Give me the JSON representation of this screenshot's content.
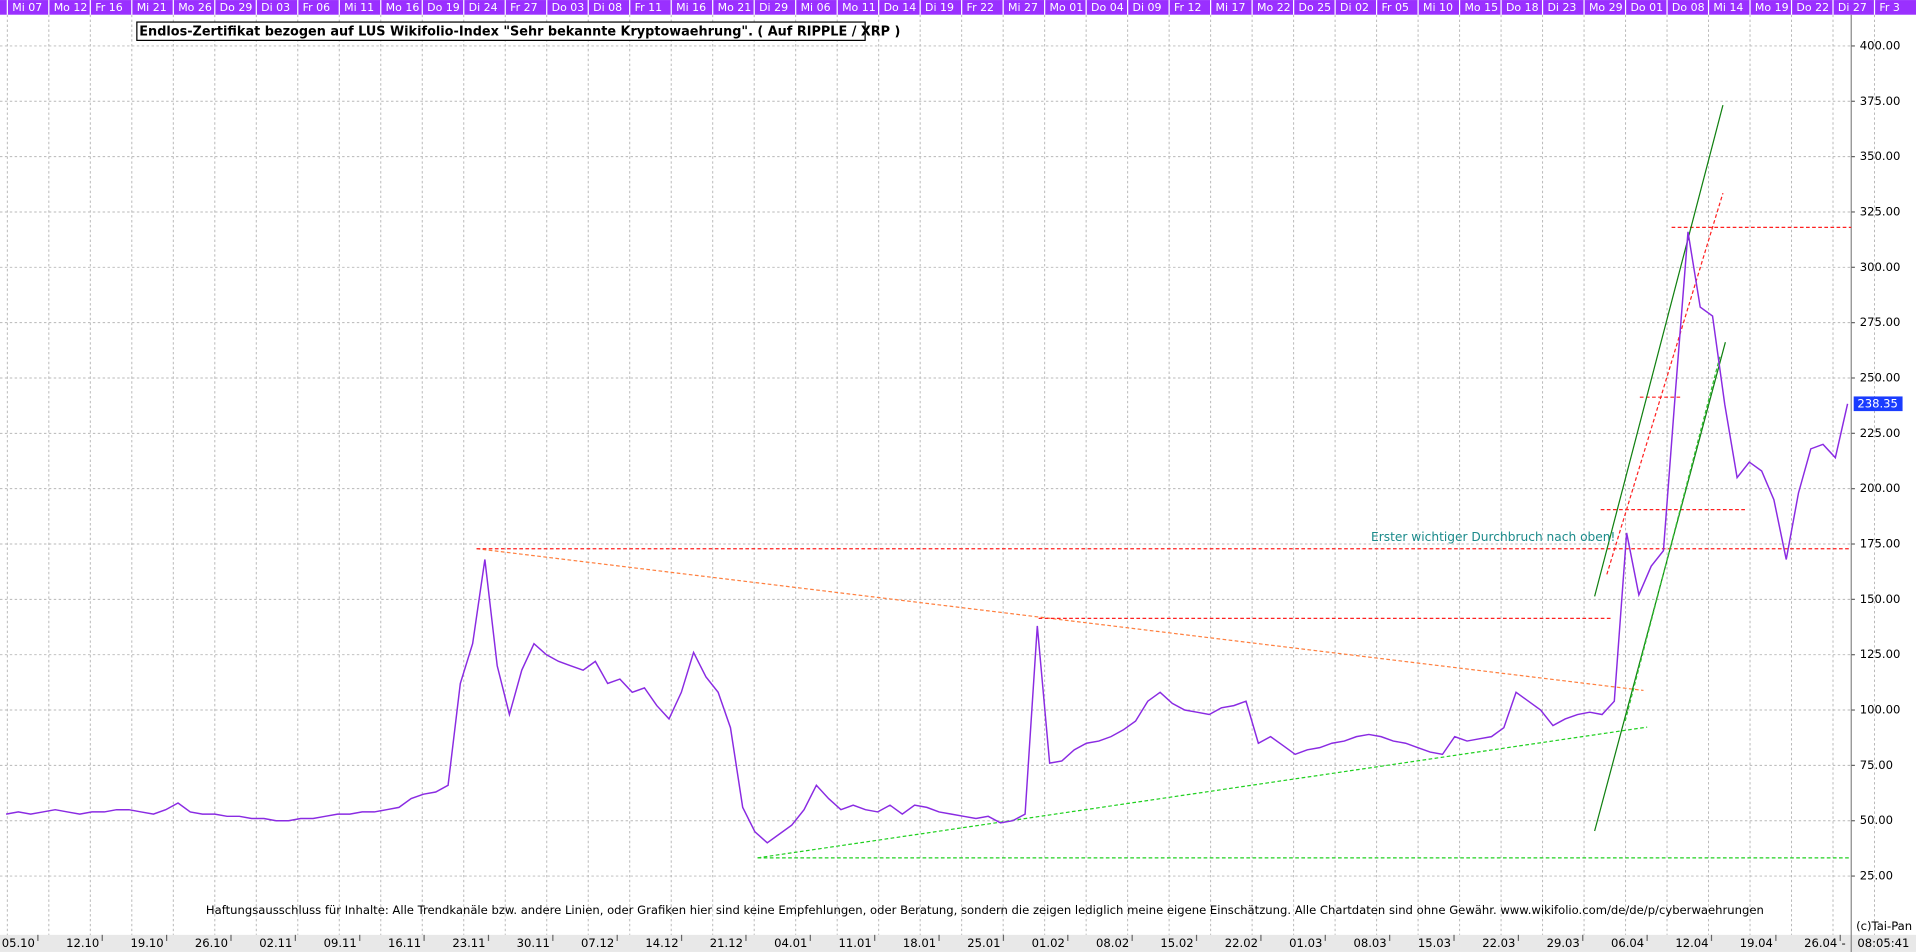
{
  "chart_data": {
    "type": "line",
    "title": "Endlos-Zertifikat bezogen auf LUS Wikifolio-Index \"Sehr bekannte Kryptowaehrung\". ( Auf RIPPLE / XRP )",
    "annotation": "Erster wichtiger Durchbruch nach oben!",
    "footer": "Haftungsausschluss für Inhalte: Alle Trendkanäle bzw. andere Linien, oder Grafiken hier sind keine Empfehlungen, oder Beratung, sondern die zeigen lediglich meine eigene Einschätzung. Alle Chartdaten sind ohne Gewähr.  www.wikifolio.com/de/de/p/cyberwaehrungen",
    "copyright": "(c)Tai-Pan",
    "time": "08:05:41",
    "cursor_label": "-",
    "color": "#8a2be2",
    "grid": true,
    "top_tick_labels": [
      "Mi 07",
      "Mo 12",
      "Fr 16",
      "Mi 21",
      "Mo 26",
      "Do 29",
      "Di 03",
      "Fr 06",
      "Mi 11",
      "Mo 16",
      "Do 19",
      "Di 24",
      "Fr 27",
      "Do 03",
      "Di 08",
      "Fr 11",
      "Mi 16",
      "Mo 21",
      "Di 29",
      "Mi 06",
      "Mo 11",
      "Do 14",
      "Di 19",
      "Fr 22",
      "Mi 27",
      "Mo 01",
      "Do 04",
      "Di 09",
      "Fr 12",
      "Mi 17",
      "Mo 22",
      "Do 25",
      "Di 02",
      "Fr 05",
      "Mi 10",
      "Mo 15",
      "Do 18",
      "Di 23",
      "Mo 29",
      "Do 01",
      "Do 08",
      "Mi 14",
      "Mo 19",
      "Do 22",
      "Di 27",
      "Fr 3"
    ],
    "x_tick_labels": [
      "05.10",
      "12.10",
      "19.10",
      "26.10",
      "02.11",
      "09.11",
      "16.11",
      "23.11",
      "30.11",
      "07.12",
      "14.12",
      "21.12",
      "04.01",
      "11.01",
      "18.01",
      "25.01",
      "01.02",
      "08.02",
      "15.02",
      "22.02",
      "01.03",
      "08.03",
      "15.03",
      "22.03",
      "29.03",
      "06.04",
      "12.04",
      "19.04",
      "26.04"
    ],
    "values": [
      53,
      54,
      53,
      54,
      55,
      54,
      53,
      54,
      54,
      55,
      55,
      54,
      53,
      55,
      58,
      54,
      53,
      53,
      52,
      52,
      51,
      51,
      50,
      50,
      51,
      51,
      52,
      53,
      53,
      54,
      54,
      55,
      56,
      60,
      62,
      63,
      66,
      112,
      130,
      168,
      120,
      98,
      118,
      130,
      125,
      122,
      120,
      118,
      122,
      112,
      114,
      108,
      110,
      102,
      96,
      108,
      126,
      115,
      108,
      92,
      56,
      45,
      40,
      44,
      48,
      55,
      66,
      60,
      55,
      57,
      55,
      54,
      57,
      53,
      57,
      56,
      54,
      53,
      52,
      51,
      52,
      49,
      50,
      53,
      138,
      76,
      77,
      82,
      85,
      86,
      88,
      91,
      95,
      104,
      108,
      103,
      100,
      99,
      98,
      101,
      102,
      104,
      85,
      88,
      84,
      80,
      82,
      83,
      85,
      86,
      88,
      89,
      88,
      86,
      85,
      83,
      81,
      80,
      88,
      86,
      87,
      88,
      92,
      108,
      104,
      100,
      93,
      96,
      98,
      99,
      98,
      104,
      180,
      152,
      165,
      172,
      245,
      316,
      282,
      278,
      238,
      205,
      212,
      208,
      195,
      168,
      198,
      218,
      220,
      214,
      238.35
    ],
    "ylim": [
      -1,
      413
    ],
    "yticks": [
      {
        "value": 25,
        "label": "25.00"
      },
      {
        "value": 50,
        "label": "50.00"
      },
      {
        "value": 75,
        "label": "75.00"
      },
      {
        "value": 100,
        "label": "100.00"
      },
      {
        "value": 125,
        "label": "125.00"
      },
      {
        "value": 150,
        "label": "150.00"
      },
      {
        "value": 175,
        "label": "175.00"
      },
      {
        "value": 200,
        "label": "200.00"
      },
      {
        "value": 225,
        "label": "225.00"
      },
      {
        "value": 250,
        "label": "250.00"
      },
      {
        "value": 275,
        "label": "275.00"
      },
      {
        "value": 300,
        "label": "300.00"
      },
      {
        "value": 325,
        "label": "325.00"
      },
      {
        "value": 350,
        "label": "350.00"
      },
      {
        "value": 375,
        "label": "375.00"
      },
      {
        "value": 400,
        "label": "400.00"
      }
    ]
  }
}
